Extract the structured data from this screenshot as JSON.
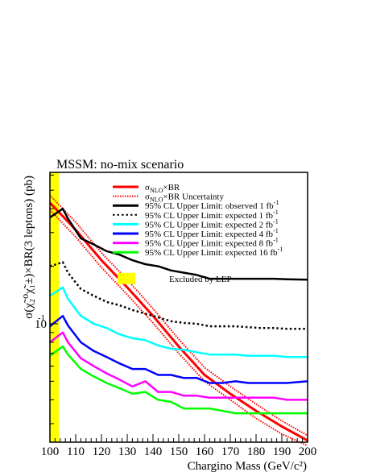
{
  "chart_data": {
    "type": "line",
    "title": "MSSM: no-mix scenario",
    "xlabel": "Chargino Mass (GeV/c²)",
    "ylabel": "σ(χ̃₂⁰χ̃₁±)×BR(3 leptons) (pb)",
    "x_log": false,
    "y_log": true,
    "xlim": [
      100,
      200
    ],
    "ylim": [
      0.024,
      0.62
    ],
    "x_ticks": [
      "100",
      "110",
      "120",
      "130",
      "140",
      "150",
      "160",
      "170",
      "180",
      "190",
      "200"
    ],
    "y_tick_label": "10",
    "y_tick_exponent": "-1",
    "excluded_band": {
      "label": "Excluded by LEP",
      "x_range": [
        100,
        103.5
      ],
      "color": "#ffff00"
    },
    "series": [
      {
        "name": "σNLO×BR",
        "legend_html": "σ<sub>NLO</sub>×BR",
        "color": "#ff0000",
        "style": "solid",
        "width": 3,
        "x": [
          100,
          110,
          120,
          130,
          140,
          150,
          160,
          170,
          180,
          190,
          200
        ],
        "y": [
          0.43,
          0.31,
          0.215,
          0.155,
          0.11,
          0.076,
          0.054,
          0.043,
          0.035,
          0.029,
          0.0245
        ]
      },
      {
        "name": "σNLO×BR Uncertainty",
        "legend_html": "σ<sub>NLO</sub>×BR Uncertainty",
        "color": "#ff0000",
        "style": "dotted",
        "width": 2,
        "x": [
          100,
          110,
          120,
          130,
          140,
          150,
          160,
          170,
          180,
          190,
          200
        ],
        "y": [
          0.47,
          0.34,
          0.235,
          0.17,
          0.12,
          0.083,
          0.059,
          0.047,
          0.038,
          0.031,
          0.026
        ]
      },
      {
        "name": "σNLO×BR Uncertainty (lower)",
        "color": "#ff0000",
        "style": "dotted",
        "width": 2,
        "x": [
          100,
          110,
          120,
          130,
          140,
          150,
          160,
          170,
          180,
          190,
          200
        ],
        "y": [
          0.395,
          0.285,
          0.197,
          0.142,
          0.101,
          0.07,
          0.05,
          0.04,
          0.032,
          0.0265,
          0.023
        ]
      },
      {
        "name": "95% CL Upper Limit: observed 1 fb⁻¹",
        "legend_pre": "95% CL Upper Limit: observed 1 fb",
        "legend_sup": "-1",
        "color": "#000000",
        "style": "solid",
        "width": 2.5,
        "x": [
          100,
          105,
          107,
          112,
          117,
          122,
          127,
          132,
          137,
          142,
          147,
          152,
          157,
          162,
          167,
          172,
          177,
          182,
          187,
          192,
          200
        ],
        "y": [
          0.36,
          0.4,
          0.355,
          0.28,
          0.26,
          0.24,
          0.23,
          0.215,
          0.205,
          0.2,
          0.19,
          0.185,
          0.18,
          0.172,
          0.172,
          0.172,
          0.172,
          0.172,
          0.172,
          0.171,
          0.17
        ]
      },
      {
        "name": "95% CL Upper Limit: expected 1 fb⁻¹",
        "legend_pre": "95% CL Upper Limit: expected 1 fb",
        "legend_sup": "-1",
        "color": "#000000",
        "style": "dotted",
        "width": 2.5,
        "x": [
          100,
          105,
          107,
          112,
          117,
          122,
          127,
          132,
          137,
          142,
          147,
          152,
          157,
          162,
          167,
          172,
          177,
          182,
          187,
          192,
          200
        ],
        "y": [
          0.2,
          0.21,
          0.185,
          0.152,
          0.14,
          0.13,
          0.125,
          0.118,
          0.113,
          0.108,
          0.103,
          0.101,
          0.1,
          0.097,
          0.097,
          0.097,
          0.096,
          0.095,
          0.095,
          0.094,
          0.094
        ]
      },
      {
        "name": "95% CL Upper Limit: expected 2 fb⁻¹",
        "legend_pre": "95% CL Upper Limit: expected 2 fb",
        "legend_sup": "-1",
        "color": "#00ffff",
        "style": "solid",
        "width": 2.5,
        "x": [
          100,
          105,
          107,
          112,
          117,
          122,
          127,
          132,
          137,
          142,
          147,
          152,
          157,
          162,
          167,
          172,
          177,
          182,
          187,
          192,
          200
        ],
        "y": [
          0.14,
          0.155,
          0.135,
          0.11,
          0.1,
          0.095,
          0.088,
          0.084,
          0.082,
          0.077,
          0.074,
          0.073,
          0.071,
          0.069,
          0.069,
          0.069,
          0.068,
          0.068,
          0.068,
          0.067,
          0.067
        ]
      },
      {
        "name": "95% CL Upper Limit: expected 4 fb⁻¹",
        "legend_pre": "95% CL Upper Limit: expected 4 fb",
        "legend_sup": "-1",
        "color": "#0000ff",
        "style": "solid",
        "width": 2.5,
        "x": [
          100,
          105,
          107,
          112,
          117,
          122,
          127,
          132,
          137,
          142,
          147,
          152,
          157,
          162,
          167,
          172,
          177,
          182,
          187,
          192,
          200
        ],
        "y": [
          0.097,
          0.11,
          0.098,
          0.08,
          0.072,
          0.067,
          0.062,
          0.058,
          0.058,
          0.054,
          0.054,
          0.052,
          0.052,
          0.049,
          0.049,
          0.05,
          0.049,
          0.049,
          0.049,
          0.049,
          0.05
        ]
      },
      {
        "name": "95% CL Upper Limit: expected 8 fb⁻¹",
        "legend_pre": "95% CL Upper Limit: expected 8 fb",
        "legend_sup": "-1",
        "color": "#ff00ff",
        "style": "solid",
        "width": 2.5,
        "x": [
          100,
          105,
          107,
          112,
          117,
          122,
          127,
          132,
          137,
          142,
          147,
          152,
          157,
          162,
          167,
          172,
          177,
          182,
          187,
          192,
          200
        ],
        "y": [
          0.08,
          0.09,
          0.08,
          0.066,
          0.06,
          0.055,
          0.051,
          0.047,
          0.05,
          0.044,
          0.044,
          0.042,
          0.042,
          0.041,
          0.041,
          0.041,
          0.041,
          0.041,
          0.041,
          0.04,
          0.04
        ]
      },
      {
        "name": "95% CL Upper Limit: expected 16 fb⁻¹",
        "legend_pre": "95% CL Upper Limit: expected 16 fb",
        "legend_sup": "-1",
        "color": "#00ff00",
        "style": "solid",
        "width": 2.5,
        "x": [
          100,
          105,
          107,
          112,
          117,
          122,
          127,
          132,
          137,
          142,
          147,
          152,
          157,
          162,
          167,
          172,
          177,
          182,
          187,
          192,
          200
        ],
        "y": [
          0.068,
          0.076,
          0.069,
          0.058,
          0.053,
          0.049,
          0.046,
          0.043,
          0.044,
          0.04,
          0.039,
          0.036,
          0.036,
          0.036,
          0.035,
          0.034,
          0.034,
          0.034,
          0.034,
          0.034,
          0.034
        ]
      }
    ]
  }
}
